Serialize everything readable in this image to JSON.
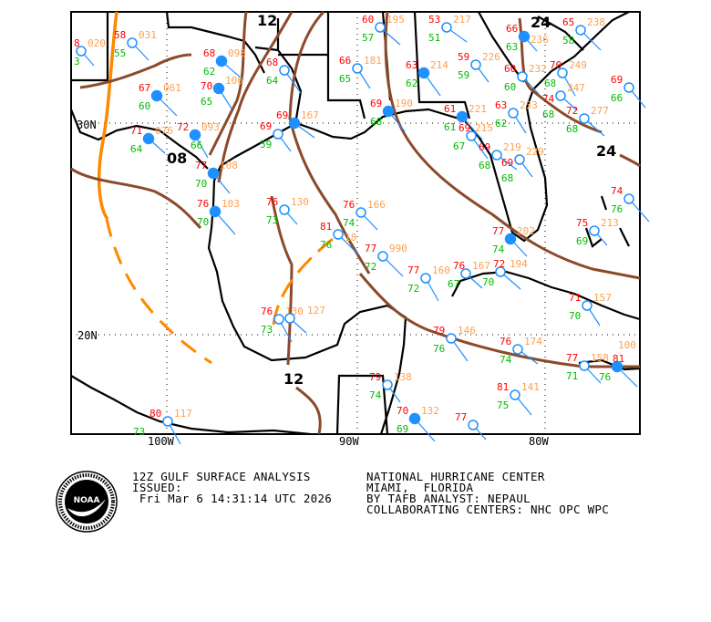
{
  "map": {
    "grid_labels": {
      "lat": [
        "30N",
        "20N"
      ],
      "lon": [
        "100W",
        "90W",
        "80W"
      ]
    },
    "isobar_labels": [
      "12",
      "24",
      "24",
      "08",
      "12"
    ],
    "colors": {
      "isobar": "#8b4a2b",
      "front": "#ff8800",
      "coast": "#000000",
      "station": "#1e90ff",
      "temperature": "#ff0000",
      "dewpoint": "#00bb00",
      "pressure": "#ffa050",
      "weather": "#ff00ff"
    },
    "stations": [
      {
        "t": "8",
        "d": "3",
        "p": "020",
        "filled": false
      },
      {
        "t": "58",
        "d": "55",
        "p": "031",
        "filled": false
      },
      {
        "t": "67",
        "d": "60",
        "p": "061",
        "filled": true
      },
      {
        "t": "72",
        "d": "66",
        "p": "093",
        "filled": true
      },
      {
        "t": "71",
        "d": "64",
        "p": "076",
        "filled": true
      },
      {
        "t": "68",
        "d": "62",
        "p": "098",
        "filled": true
      },
      {
        "t": "70",
        "d": "65",
        "p": "106",
        "filled": true
      },
      {
        "t": "68",
        "d": "64",
        "p": "",
        "filled": false
      },
      {
        "t": "69",
        "d": "",
        "p": "167",
        "filled": true
      },
      {
        "t": "69",
        "d": "59",
        "p": "",
        "filled": false
      },
      {
        "t": "77",
        "d": "70",
        "p": "108",
        "filled": true
      },
      {
        "t": "76",
        "d": "70",
        "p": "103",
        "filled": true
      },
      {
        "t": "76",
        "d": "73",
        "p": "130",
        "filled": false
      },
      {
        "t": "76",
        "d": "74",
        "p": "166",
        "filled": false
      },
      {
        "t": "81",
        "d": "76",
        "p": "18",
        "filled": false
      },
      {
        "t": "76",
        "d": "73",
        "p": "130",
        "filled": false
      },
      {
        "t": "",
        "d": "",
        "p": "127",
        "filled": false
      },
      {
        "t": "60",
        "d": "57",
        "p": "195",
        "filled": false
      },
      {
        "t": "66",
        "d": "65",
        "p": "181",
        "filled": false
      },
      {
        "t": "63",
        "d": "62",
        "p": "214",
        "filled": true
      },
      {
        "t": "53",
        "d": "51",
        "p": "217",
        "filled": false
      },
      {
        "t": "59",
        "d": "59",
        "p": "226",
        "filled": false
      },
      {
        "t": "69",
        "d": "68",
        "p": "190",
        "filled": true
      },
      {
        "t": "61",
        "d": "61",
        "p": "221",
        "filled": true
      },
      {
        "t": "66",
        "d": "63",
        "p": "236",
        "filled": true
      },
      {
        "t": "60",
        "d": "60",
        "p": "232",
        "filled": false
      },
      {
        "t": "65",
        "d": "58",
        "p": "238",
        "filled": false
      },
      {
        "t": "70",
        "d": "68",
        "p": "249",
        "filled": false
      },
      {
        "t": "74",
        "d": "68",
        "p": "247",
        "filled": false
      },
      {
        "t": "72",
        "d": "68",
        "p": "277",
        "filled": false
      },
      {
        "t": "63",
        "d": "62",
        "p": "233",
        "filled": false
      },
      {
        "t": "69",
        "d": "67",
        "p": "215",
        "filled": false
      },
      {
        "t": "69",
        "d": "68",
        "p": "219",
        "filled": false
      },
      {
        "t": "69",
        "d": "68",
        "p": "229",
        "filled": false
      },
      {
        "t": "69",
        "d": "66",
        "p": "",
        "filled": false
      },
      {
        "t": "74",
        "d": "76",
        "p": "",
        "filled": false
      },
      {
        "t": "75",
        "d": "69",
        "p": "213",
        "filled": false
      },
      {
        "t": "77",
        "d": "74",
        "p": "202",
        "filled": true
      },
      {
        "t": "77",
        "d": "72",
        "p": "990",
        "filled": false
      },
      {
        "t": "77",
        "d": "72",
        "p": "160",
        "filled": false
      },
      {
        "t": "76",
        "d": "67",
        "p": "167",
        "filled": false
      },
      {
        "t": "72",
        "d": "70",
        "p": "194",
        "filled": false
      },
      {
        "t": "71",
        "d": "70",
        "p": "157",
        "filled": false
      },
      {
        "t": "79",
        "d": "76",
        "p": "146",
        "filled": false
      },
      {
        "t": "76",
        "d": "74",
        "p": "174",
        "filled": false
      },
      {
        "t": "79",
        "d": "74",
        "p": "138",
        "filled": false
      },
      {
        "t": "81",
        "d": "75",
        "p": "141",
        "filled": false
      },
      {
        "t": "70",
        "d": "69",
        "p": "132",
        "filled": true
      },
      {
        "t": "77",
        "d": "",
        "p": "",
        "filled": false
      },
      {
        "t": "77",
        "d": "71",
        "p": "158",
        "filled": false
      },
      {
        "t": "81",
        "d": "76",
        "p": "100",
        "filled": true
      },
      {
        "t": "80",
        "d": "73",
        "p": "117",
        "filled": false
      }
    ]
  },
  "info": {
    "product": "12Z GULF SURFACE ANALYSIS",
    "issued_label": "ISSUED:",
    "issued_time": " Fri Mar 6 14:31:14 UTC 2026",
    "center": "NATIONAL HURRICANE CENTER",
    "location": "MIAMI,  FLORIDA",
    "analyst": "BY TAFB ANALYST: NEPAUL",
    "collab": "COLLABORATING CENTERS: NHC OPC WPC"
  },
  "logo": {
    "text": "NOAA",
    "ring": "NATIONAL OCEANIC AND ATMOSPHERIC ADMINISTRATION U.S. DEPARTMENT OF COMMERCE"
  }
}
